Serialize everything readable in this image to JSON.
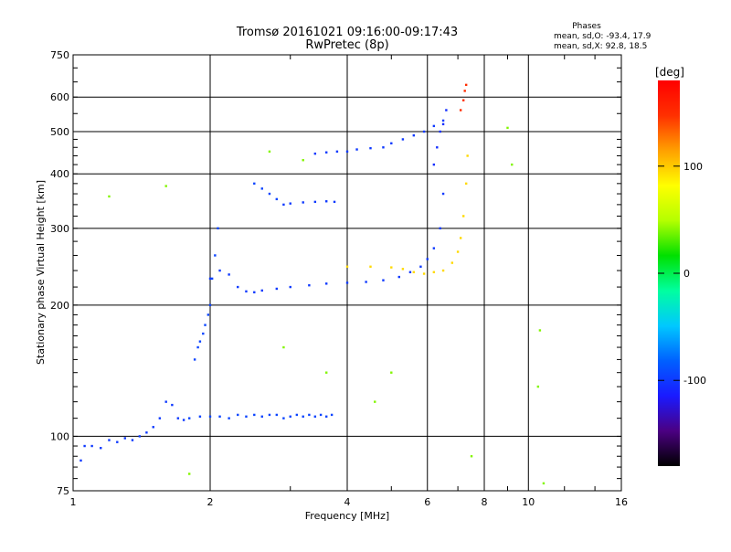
{
  "chart_data": {
    "type": "scatter",
    "title": "Tromsø 20161021 09:16:00-09:17:43",
    "subtitle": "RwPretec (8p)",
    "xlabel": "Frequency [MHz]",
    "ylabel": "Stationary phase Virtual Height [km]",
    "x_scale": "log",
    "y_scale": "log",
    "xlim": [
      1,
      16
    ],
    "ylim": [
      75,
      750
    ],
    "grid": true,
    "x_ticks": [
      1,
      2,
      4,
      6,
      8,
      10,
      16
    ],
    "x_tick_labels": [
      "1",
      "2",
      "4",
      "6",
      "8",
      "10",
      "16"
    ],
    "y_ticks": [
      75,
      100,
      200,
      300,
      400,
      500,
      600,
      750
    ],
    "y_tick_labels": [
      "75",
      "100",
      "200",
      "300",
      "400",
      "500",
      "600",
      "750"
    ],
    "stats": {
      "heading": "Phases",
      "line_o": "mean, sd,O: -93.4, 17.9",
      "line_x": "mean, sd,X:  92.8, 18.5"
    },
    "colorbar": {
      "label": "[deg]",
      "range": [
        -180,
        180
      ],
      "tick_values": [
        100,
        0,
        -100
      ],
      "tick_labels": [
        "100",
        "0",
        "-100"
      ],
      "colors": [
        "#000000",
        "#4b0082",
        "#1a1aff",
        "#0060ff",
        "#00c8ff",
        "#00ffa0",
        "#00e000",
        "#b4ff00",
        "#ffff00",
        "#ffa000",
        "#ff3000",
        "#ff0000"
      ]
    },
    "series": [
      {
        "id": "o-low",
        "x": [
          1.04,
          1.06,
          1.1,
          1.15,
          1.2,
          1.25,
          1.3,
          1.35,
          1.4,
          1.45,
          1.5,
          1.55,
          1.6,
          1.65,
          1.7,
          1.75
        ],
        "y": [
          88,
          95,
          95,
          94,
          98,
          97,
          99,
          98,
          100,
          102,
          105,
          110,
          120,
          118,
          110,
          109
        ],
        "phase": -100
      },
      {
        "id": "o-e-layer",
        "x": [
          1.8,
          1.9,
          2.0,
          2.1,
          2.2,
          2.3,
          2.4,
          2.5,
          2.6,
          2.7,
          2.8,
          2.9,
          3.0,
          3.1,
          3.2,
          3.3,
          3.4,
          3.5,
          3.6,
          3.7
        ],
        "y": [
          110,
          111,
          111,
          111,
          110,
          112,
          111,
          112,
          111,
          112,
          112,
          110,
          111,
          112,
          111,
          112,
          111,
          112,
          111,
          112
        ],
        "phase": -95
      },
      {
        "id": "o-f1-rise",
        "x": [
          1.85,
          1.88,
          1.9,
          1.93,
          1.95,
          1.98,
          2.0,
          2.02,
          2.05,
          2.08
        ],
        "y": [
          150,
          160,
          165,
          172,
          180,
          190,
          200,
          230,
          260,
          300
        ],
        "phase": -95
      },
      {
        "id": "o-f-trace",
        "x": [
          2.0,
          2.1,
          2.2,
          2.3,
          2.4,
          2.5,
          2.6,
          2.8,
          3.0,
          3.3,
          3.6,
          4.0,
          4.4,
          4.8,
          5.2,
          5.5,
          5.8,
          6.0,
          6.2,
          6.4,
          6.5
        ],
        "y": [
          230,
          240,
          235,
          220,
          215,
          214,
          216,
          218,
          220,
          222,
          224,
          225,
          226,
          228,
          232,
          238,
          245,
          255,
          270,
          300,
          360
        ],
        "phase": -100
      },
      {
        "id": "o-f-top",
        "x": [
          6.2,
          6.3,
          6.4,
          6.5,
          6.6
        ],
        "y": [
          420,
          460,
          500,
          520,
          560
        ],
        "phase": -105
      },
      {
        "id": "x-f-trace",
        "x": [
          4.0,
          4.5,
          5.0,
          5.3,
          5.6,
          5.9,
          6.2,
          6.5,
          6.8,
          7.0,
          7.1,
          7.2,
          7.3,
          7.35
        ],
        "y": [
          245,
          245,
          244,
          242,
          238,
          236,
          238,
          240,
          250,
          265,
          285,
          320,
          380,
          440
        ],
        "phase": 95
      },
      {
        "id": "x-f-top",
        "x": [
          7.1,
          7.2,
          7.25,
          7.3
        ],
        "y": [
          560,
          590,
          620,
          640
        ],
        "phase": 150
      },
      {
        "id": "o-upper-band",
        "x": [
          3.4,
          3.6,
          3.8,
          4.0,
          4.2,
          4.5,
          4.8,
          5.0,
          5.3,
          5.6,
          5.9,
          6.2,
          6.5
        ],
        "y": [
          445,
          448,
          450,
          450,
          455,
          458,
          460,
          470,
          480,
          490,
          500,
          515,
          530
        ],
        "phase": -100
      },
      {
        "id": "o-mid-band",
        "x": [
          2.9,
          3.0,
          3.2,
          3.4,
          3.6,
          3.75
        ],
        "y": [
          340,
          342,
          344,
          345,
          346,
          345
        ],
        "phase": -100
      },
      {
        "id": "o-2nd-tail",
        "x": [
          2.5,
          2.6,
          2.7,
          2.8
        ],
        "y": [
          380,
          370,
          360,
          350
        ],
        "phase": -95
      },
      {
        "id": "noise",
        "x": [
          1.2,
          1.6,
          1.8,
          2.7,
          2.9,
          3.2,
          3.6,
          4.6,
          5.0,
          7.5,
          9.0,
          9.2,
          10.5,
          10.6,
          10.8
        ],
        "y": [
          355,
          375,
          82,
          450,
          160,
          430,
          140,
          120,
          140,
          90,
          510,
          420,
          130,
          175,
          78
        ],
        "phase": 40
      }
    ]
  }
}
